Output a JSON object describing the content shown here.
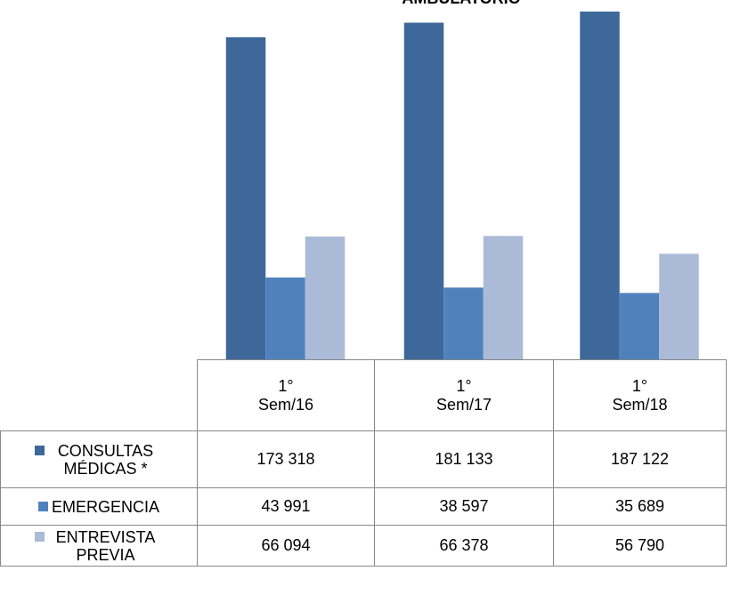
{
  "chart_data": {
    "type": "bar",
    "title": "AMBULATORIO",
    "categories": [
      "1° Sem/16",
      "1° Sem/17",
      "1° Sem/18"
    ],
    "series": [
      {
        "name": "CONSULTAS MÉDICAS *",
        "color": "#3e6899",
        "values": [
          173318,
          181133,
          187122
        ],
        "value_labels": [
          "173 318",
          "181 133",
          "187 122"
        ]
      },
      {
        "name": "EMERGENCIA",
        "color": "#4f81bd",
        "values": [
          43991,
          38597,
          35689
        ],
        "value_labels": [
          "43 991",
          "38 597",
          "35 689"
        ]
      },
      {
        "name": "ENTREVISTA PREVIA",
        "color": "#aabad7",
        "values": [
          66094,
          66378,
          56790
        ],
        "value_labels": [
          "66 094",
          "66 378",
          "56 790"
        ]
      }
    ]
  }
}
